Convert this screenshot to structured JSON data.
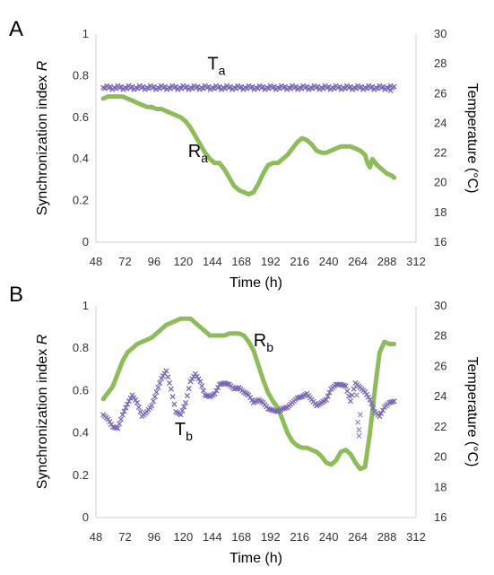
{
  "colors": {
    "r_series": "#8fbc5a",
    "t_series": "#7b66b5"
  },
  "chart_data": [
    {
      "panel": "A",
      "type": "line",
      "xlabel": "Time (h)",
      "ylabel_left_prefix": "Synchronization index ",
      "ylabel_left_var": "R",
      "ylabel_right_prefix": "Temperature (",
      "ylabel_right_unit": "°C",
      "ylabel_right_suffix": ")",
      "xlim": [
        48,
        312
      ],
      "xticks": [
        "48",
        "72",
        "96",
        "120",
        "144",
        "168",
        "192",
        "216",
        "240",
        "264",
        "288",
        "312"
      ],
      "ylim_left": [
        0,
        1
      ],
      "yticks_left": [
        "0",
        "0.2",
        "0.4",
        "0.6",
        "0.8",
        "1"
      ],
      "ylim_right": [
        16,
        30
      ],
      "yticks_right": [
        "16",
        "18",
        "20",
        "22",
        "24",
        "26",
        "28",
        "30"
      ],
      "grid": false,
      "series": [
        {
          "name": "R",
          "sub": "a",
          "axis": "left",
          "style": "line",
          "label_pos": {
            "x": 124,
            "y": 0.41
          },
          "x": [
            54,
            58,
            62,
            66,
            70,
            74,
            78,
            82,
            86,
            90,
            94,
            98,
            102,
            106,
            110,
            114,
            118,
            122,
            126,
            130,
            134,
            138,
            142,
            146,
            150,
            154,
            158,
            162,
            166,
            170,
            174,
            178,
            182,
            186,
            190,
            194,
            198,
            202,
            206,
            210,
            214,
            218,
            222,
            226,
            230,
            234,
            238,
            242,
            246,
            250,
            254,
            258,
            262,
            266,
            270,
            272,
            274,
            276,
            280,
            284,
            288,
            292,
            294
          ],
          "y": [
            0.69,
            0.7,
            0.7,
            0.7,
            0.7,
            0.69,
            0.68,
            0.67,
            0.66,
            0.65,
            0.65,
            0.64,
            0.64,
            0.63,
            0.62,
            0.61,
            0.6,
            0.58,
            0.55,
            0.51,
            0.47,
            0.43,
            0.4,
            0.38,
            0.38,
            0.35,
            0.31,
            0.27,
            0.25,
            0.24,
            0.23,
            0.24,
            0.28,
            0.33,
            0.37,
            0.38,
            0.38,
            0.4,
            0.42,
            0.45,
            0.48,
            0.5,
            0.49,
            0.47,
            0.44,
            0.43,
            0.43,
            0.44,
            0.45,
            0.46,
            0.46,
            0.46,
            0.45,
            0.44,
            0.42,
            0.38,
            0.36,
            0.4,
            0.37,
            0.35,
            0.33,
            0.32,
            0.31
          ]
        },
        {
          "name": "T",
          "sub": "a",
          "axis": "right",
          "style": "markers",
          "label_pos": {
            "x": 140,
            "y": 0.83
          },
          "x_start": 54,
          "x_end": 294,
          "x_step": 1.5,
          "y_const": 26.4,
          "y_jitter": 0.12,
          "tail": [
            {
              "x": 288,
              "y": 26.4
            },
            {
              "x": 291,
              "y": 26.2
            }
          ]
        }
      ]
    },
    {
      "panel": "B",
      "type": "line",
      "xlabel": "Time (h)",
      "ylabel_left_prefix": "Synchronization index ",
      "ylabel_left_var": "R",
      "ylabel_right_prefix": "Temperature (",
      "ylabel_right_unit": "°C",
      "ylabel_right_suffix": ")",
      "xlim": [
        48,
        312
      ],
      "xticks": [
        "48",
        "72",
        "96",
        "120",
        "144",
        "168",
        "192",
        "216",
        "240",
        "264",
        "288",
        "312"
      ],
      "ylim_left": [
        0,
        1
      ],
      "yticks_left": [
        "0",
        "0.2",
        "0.4",
        "0.6",
        "0.8",
        "1"
      ],
      "ylim_right": [
        16,
        30
      ],
      "yticks_right": [
        "16",
        "18",
        "20",
        "22",
        "24",
        "26",
        "28",
        "30"
      ],
      "grid": false,
      "series": [
        {
          "name": "R",
          "sub": "b",
          "axis": "left",
          "style": "line",
          "label_pos": {
            "x": 178,
            "y": 0.81
          },
          "x": [
            54,
            58,
            62,
            66,
            70,
            74,
            78,
            82,
            86,
            90,
            94,
            98,
            102,
            106,
            110,
            114,
            118,
            122,
            126,
            130,
            134,
            138,
            142,
            146,
            150,
            154,
            158,
            162,
            166,
            170,
            174,
            178,
            182,
            186,
            190,
            194,
            198,
            202,
            206,
            210,
            214,
            218,
            222,
            226,
            230,
            234,
            238,
            242,
            246,
            250,
            254,
            258,
            262,
            266,
            270,
            274,
            278,
            282,
            286,
            290,
            294
          ],
          "y": [
            0.56,
            0.59,
            0.62,
            0.68,
            0.74,
            0.78,
            0.8,
            0.82,
            0.83,
            0.84,
            0.85,
            0.87,
            0.89,
            0.91,
            0.92,
            0.93,
            0.94,
            0.94,
            0.94,
            0.92,
            0.9,
            0.88,
            0.86,
            0.86,
            0.86,
            0.86,
            0.87,
            0.87,
            0.87,
            0.86,
            0.83,
            0.79,
            0.72,
            0.65,
            0.59,
            0.55,
            0.52,
            0.46,
            0.4,
            0.36,
            0.34,
            0.33,
            0.33,
            0.32,
            0.31,
            0.29,
            0.26,
            0.25,
            0.27,
            0.31,
            0.32,
            0.3,
            0.26,
            0.23,
            0.24,
            0.4,
            0.6,
            0.78,
            0.83,
            0.82,
            0.82
          ]
        },
        {
          "name": "T",
          "sub": "b",
          "axis": "right",
          "style": "markers",
          "label_pos": {
            "x": 113,
            "y": 0.39
          },
          "x": [
            54,
            58,
            62,
            66,
            70,
            74,
            78,
            82,
            86,
            90,
            94,
            98,
            102,
            106,
            110,
            114,
            118,
            122,
            126,
            130,
            134,
            138,
            142,
            146,
            150,
            154,
            158,
            162,
            166,
            170,
            174,
            178,
            182,
            186,
            190,
            194,
            198,
            202,
            206,
            210,
            214,
            218,
            222,
            226,
            230,
            234,
            238,
            242,
            246,
            250,
            254,
            258,
            262,
            266,
            270,
            274,
            278,
            282,
            286,
            290,
            294
          ],
          "y": [
            22.8,
            22.5,
            22.0,
            21.9,
            22.8,
            23.5,
            24.1,
            23.6,
            22.7,
            23.0,
            23.4,
            24.3,
            25.2,
            25.7,
            24.5,
            23.0,
            22.8,
            23.6,
            25.0,
            25.5,
            25.0,
            24.1,
            24.0,
            24.2,
            24.8,
            24.9,
            24.8,
            24.5,
            24.6,
            24.3,
            24.1,
            23.6,
            23.8,
            23.6,
            23.2,
            23.1,
            23.0,
            23.2,
            23.3,
            23.6,
            23.9,
            24.0,
            24.2,
            23.8,
            23.4,
            23.6,
            23.8,
            24.5,
            24.8,
            24.8,
            24.7,
            23.7,
            24.9,
            24.6,
            24.3,
            23.8,
            23.0,
            22.7,
            23.3,
            23.6,
            23.7
          ],
          "stray": [
            {
              "x": 264,
              "y": 22.3
            },
            {
              "x": 265,
              "y": 21.8
            },
            {
              "x": 265,
              "y": 21.4
            },
            {
              "x": 266,
              "y": 22.8
            },
            {
              "x": 263,
              "y": 24.1
            }
          ]
        }
      ]
    }
  ]
}
